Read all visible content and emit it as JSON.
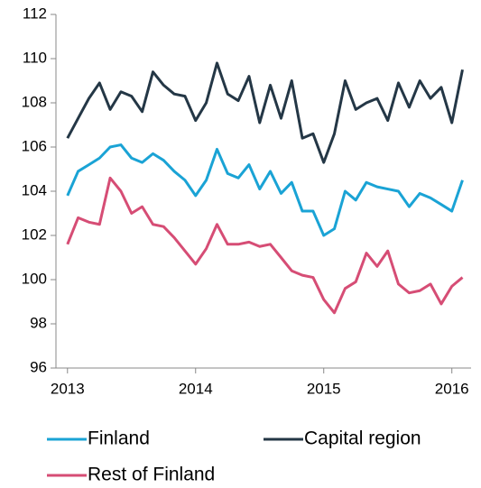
{
  "chart_data": {
    "type": "line",
    "x": [
      2013,
      2013.083,
      2013.167,
      2013.25,
      2013.333,
      2013.417,
      2013.5,
      2013.583,
      2013.667,
      2013.75,
      2013.833,
      2013.917,
      2014,
      2014.083,
      2014.167,
      2014.25,
      2014.333,
      2014.417,
      2014.5,
      2014.583,
      2014.667,
      2014.75,
      2014.833,
      2014.917,
      2015,
      2015.083,
      2015.167,
      2015.25,
      2015.333,
      2015.417,
      2015.5,
      2015.583,
      2015.667,
      2015.75,
      2015.833,
      2015.917,
      2016,
      2016.083
    ],
    "series": [
      {
        "name": "Finland",
        "color": "#1aa3d5",
        "values": [
          103.8,
          104.9,
          105.2,
          105.5,
          106.0,
          106.1,
          105.5,
          105.3,
          105.7,
          105.4,
          104.9,
          104.5,
          103.8,
          104.5,
          105.9,
          104.8,
          104.6,
          105.2,
          104.1,
          104.9,
          103.9,
          104.4,
          103.1,
          103.1,
          102.0,
          102.3,
          104.0,
          103.6,
          104.4,
          104.2,
          104.1,
          104.0,
          103.3,
          103.9,
          103.7,
          103.4,
          103.1,
          104.5
        ]
      },
      {
        "name": "Capital region",
        "color": "#243746",
        "values": [
          106.4,
          107.3,
          108.2,
          108.9,
          107.7,
          108.5,
          108.3,
          107.6,
          109.4,
          108.8,
          108.4,
          108.3,
          107.2,
          108.0,
          109.8,
          108.4,
          108.1,
          109.2,
          107.1,
          108.8,
          107.3,
          109.0,
          106.4,
          106.6,
          105.3,
          106.6,
          109.0,
          107.7,
          108.0,
          108.2,
          107.2,
          108.9,
          107.8,
          109.0,
          108.2,
          108.7,
          107.1,
          109.5
        ]
      },
      {
        "name": "Rest of Finland",
        "color": "#d64d75",
        "values": [
          101.6,
          102.8,
          102.6,
          102.5,
          104.6,
          104.0,
          103.0,
          103.3,
          102.5,
          102.4,
          101.9,
          101.3,
          100.7,
          101.4,
          102.5,
          101.6,
          101.6,
          101.7,
          101.5,
          101.6,
          101.0,
          100.4,
          100.2,
          100.1,
          99.1,
          98.5,
          99.6,
          99.9,
          101.2,
          100.6,
          101.3,
          99.8,
          99.4,
          99.5,
          99.8,
          98.9,
          99.7,
          100.1
        ]
      }
    ],
    "xlim": [
      2012.91,
      2016.15
    ],
    "xticks": [
      2013,
      2014,
      2015,
      2016
    ],
    "ylim": [
      96,
      112
    ],
    "yticks": [
      96,
      98,
      100,
      102,
      104,
      106,
      108,
      110,
      112
    ],
    "legend": "bottom"
  }
}
